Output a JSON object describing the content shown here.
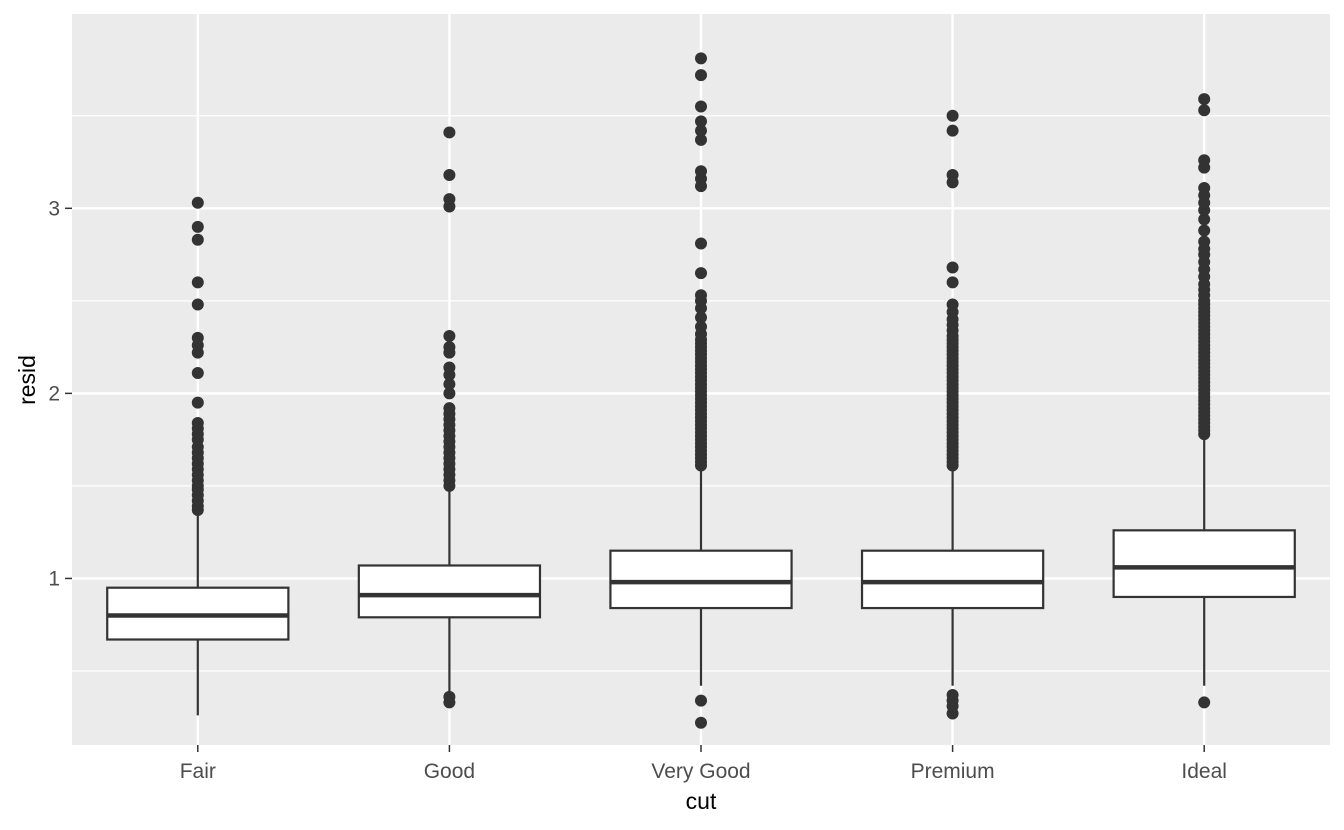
{
  "chart_data": {
    "type": "boxplot",
    "xlabel": "cut",
    "ylabel": "resid",
    "ylim": [
      0.1,
      4.05
    ],
    "yticks": [
      1,
      2,
      3
    ],
    "grid": true,
    "legend": "none",
    "colors": {
      "panel_background": "#ebebeb",
      "grid_major": "#ffffff",
      "box_fill": "#ffffff",
      "box_stroke": "#333333",
      "outlier": "#333333",
      "tick_label": "#4d4d4d"
    },
    "categories": [
      "Fair",
      "Good",
      "Very Good",
      "Premium",
      "Ideal"
    ],
    "boxes": [
      {
        "category": "Fair",
        "lower_whisker": 0.26,
        "q1": 0.67,
        "median": 0.8,
        "q3": 0.95,
        "upper_whisker": 1.36,
        "outliers": [
          1.37,
          1.39,
          1.42,
          1.45,
          1.48,
          1.5,
          1.53,
          1.56,
          1.59,
          1.62,
          1.65,
          1.68,
          1.71,
          1.75,
          1.78,
          1.81,
          1.84,
          1.95,
          2.11,
          2.22,
          2.26,
          2.3,
          2.48,
          2.6,
          2.83,
          2.9,
          3.03
        ]
      },
      {
        "category": "Good",
        "lower_whisker": 0.39,
        "q1": 0.79,
        "median": 0.91,
        "q3": 1.07,
        "upper_whisker": 1.48,
        "outliers": [
          0.33,
          0.36,
          1.5,
          1.53,
          1.56,
          1.59,
          1.62,
          1.65,
          1.68,
          1.71,
          1.74,
          1.77,
          1.8,
          1.83,
          1.86,
          1.89,
          1.92,
          2.0,
          2.05,
          2.1,
          2.14,
          2.22,
          2.25,
          2.31,
          3.01,
          3.05,
          3.18,
          3.41
        ]
      },
      {
        "category": "Very Good",
        "lower_whisker": 0.42,
        "q1": 0.84,
        "median": 0.98,
        "q3": 1.15,
        "upper_whisker": 1.6,
        "outliers": [
          0.22,
          0.34,
          1.61,
          1.63,
          1.65,
          1.67,
          1.69,
          1.71,
          1.73,
          1.75,
          1.77,
          1.79,
          1.81,
          1.83,
          1.85,
          1.87,
          1.89,
          1.91,
          1.93,
          1.95,
          1.97,
          1.99,
          2.01,
          2.03,
          2.05,
          2.07,
          2.09,
          2.11,
          2.13,
          2.15,
          2.17,
          2.19,
          2.21,
          2.23,
          2.25,
          2.27,
          2.29,
          2.32,
          2.36,
          2.41,
          2.46,
          2.5,
          2.53,
          2.65,
          2.81,
          3.12,
          3.16,
          3.2,
          3.37,
          3.42,
          3.47,
          3.55,
          3.72,
          3.81
        ]
      },
      {
        "category": "Premium",
        "lower_whisker": 0.42,
        "q1": 0.84,
        "median": 0.98,
        "q3": 1.15,
        "upper_whisker": 1.6,
        "outliers": [
          0.27,
          0.31,
          0.34,
          0.37,
          1.61,
          1.63,
          1.65,
          1.67,
          1.69,
          1.71,
          1.73,
          1.75,
          1.77,
          1.79,
          1.81,
          1.83,
          1.85,
          1.87,
          1.89,
          1.91,
          1.93,
          1.95,
          1.97,
          1.99,
          2.01,
          2.03,
          2.05,
          2.07,
          2.09,
          2.11,
          2.13,
          2.15,
          2.17,
          2.19,
          2.21,
          2.23,
          2.25,
          2.27,
          2.29,
          2.31,
          2.34,
          2.37,
          2.4,
          2.44,
          2.48,
          2.6,
          2.68,
          3.14,
          3.18,
          3.42,
          3.5
        ]
      },
      {
        "category": "Ideal",
        "lower_whisker": 0.42,
        "q1": 0.9,
        "median": 1.06,
        "q3": 1.26,
        "upper_whisker": 1.77,
        "outliers": [
          0.33,
          1.78,
          1.8,
          1.82,
          1.84,
          1.86,
          1.88,
          1.9,
          1.92,
          1.94,
          1.96,
          1.98,
          2.0,
          2.02,
          2.04,
          2.06,
          2.08,
          2.1,
          2.12,
          2.14,
          2.16,
          2.18,
          2.2,
          2.22,
          2.24,
          2.26,
          2.28,
          2.3,
          2.32,
          2.34,
          2.36,
          2.38,
          2.4,
          2.42,
          2.44,
          2.46,
          2.48,
          2.5,
          2.53,
          2.56,
          2.59,
          2.63,
          2.67,
          2.71,
          2.75,
          2.78,
          2.82,
          2.88,
          2.94,
          2.99,
          3.03,
          3.07,
          3.11,
          3.22,
          3.26,
          3.53,
          3.59
        ]
      }
    ]
  }
}
